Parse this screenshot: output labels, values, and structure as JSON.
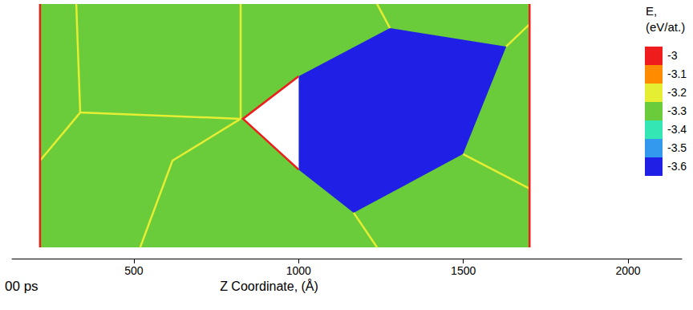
{
  "chart_data": {
    "type": "atom_map",
    "x_label": "Z Coordinate, (Å)",
    "time_label": "00 ps",
    "xlim": [
      130,
      2163
    ],
    "xticks": [
      500,
      1000,
      1500,
      2000
    ],
    "ylim": [
      -34,
      738
    ],
    "tick_labels": "x",
    "regions": [
      {
        "energy": -3.3,
        "points": [
          [
            215,
            0
          ],
          [
            1701,
            0
          ],
          [
            1701,
            738
          ],
          [
            215,
            738
          ]
        ]
      },
      {
        "energy": -3.6,
        "points": [
          [
            1000,
            519
          ],
          [
            1277,
            665
          ],
          [
            1630,
            609
          ],
          [
            1499,
            283
          ],
          [
            1167,
            105
          ],
          [
            1000,
            236
          ]
        ]
      }
    ],
    "void": [
      [
        1000,
        519
      ],
      [
        831,
        390
      ],
      [
        1000,
        236
      ]
    ],
    "boundaries": [
      {
        "energy": -3.2,
        "points": [
          [
            325,
            738
          ],
          [
            337,
            409
          ],
          [
            824,
            390
          ]
        ]
      },
      {
        "energy": -3.2,
        "points": [
          [
            824,
            738
          ],
          [
            824,
            390
          ]
        ]
      },
      {
        "energy": -3.2,
        "points": [
          [
            337,
            409
          ],
          [
            215,
            263
          ]
        ]
      },
      {
        "energy": -3.2,
        "points": [
          [
            519,
            0
          ],
          [
            617,
            263
          ],
          [
            824,
            390
          ]
        ]
      },
      {
        "energy": -3.2,
        "points": [
          [
            1167,
            105
          ],
          [
            1238,
            0
          ]
        ]
      },
      {
        "energy": -3.2,
        "points": [
          [
            1499,
            283
          ],
          [
            1701,
            178
          ]
        ]
      },
      {
        "energy": -3.2,
        "points": [
          [
            1630,
            609
          ],
          [
            1701,
            677
          ]
        ]
      },
      {
        "energy": -3.2,
        "points": [
          [
            1277,
            665
          ],
          [
            1238,
            738
          ]
        ]
      },
      {
        "energy": -3.0,
        "points": [
          [
            215,
            0
          ],
          [
            215,
            738
          ]
        ]
      },
      {
        "energy": -3.0,
        "points": [
          [
            1701,
            0
          ],
          [
            1701,
            738
          ]
        ]
      },
      {
        "energy": -3.0,
        "points": [
          [
            1000,
            519
          ],
          [
            831,
            390
          ],
          [
            1000,
            236
          ]
        ]
      }
    ],
    "colorbar": {
      "title": "E,\n(eV/at.)",
      "ticks": [
        -3,
        -3.1,
        -3.2,
        -3.3,
        -3.4,
        -3.5,
        -3.6
      ],
      "colors": [
        "#ee1c1c",
        "#ff8c00",
        "#e6ee33",
        "#6acb3b",
        "#33e6b3",
        "#3399ee",
        "#1f1fe6"
      ]
    }
  }
}
